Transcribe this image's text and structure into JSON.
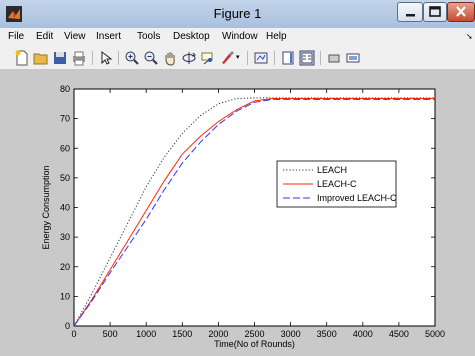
{
  "window": {
    "title": "Figure 1"
  },
  "menu": [
    {
      "label": "File"
    },
    {
      "label": "Edit"
    },
    {
      "label": "View"
    },
    {
      "label": "Insert"
    },
    {
      "label": "Tools"
    },
    {
      "label": "Desktop"
    },
    {
      "label": "Window"
    },
    {
      "label": "Help"
    }
  ],
  "toolbar": [
    "new-figure-icon",
    "open-file-icon",
    "save-icon",
    "print-icon",
    "pointer-icon",
    "zoom-in-icon",
    "zoom-out-icon",
    "pan-icon",
    "rotate-3d-icon",
    "data-cursor-icon",
    "brush-icon",
    "link-plot-icon",
    "colorbar-icon",
    "legend-icon",
    "hide-plot-tools-icon",
    "show-plot-tools-icon"
  ],
  "chart_data": {
    "type": "line",
    "title": "",
    "xlabel": "Time(No of Rounds)",
    "ylabel": "Energy Consumption",
    "xlim": [
      0,
      5000
    ],
    "ylim": [
      0,
      80
    ],
    "xticks": [
      0,
      500,
      1000,
      1500,
      2000,
      2500,
      3000,
      3500,
      4000,
      4500,
      5000
    ],
    "yticks": [
      0,
      10,
      20,
      30,
      40,
      50,
      60,
      70,
      80
    ],
    "grid": false,
    "legend_position": "center-right",
    "series": [
      {
        "name": "LEACH",
        "color": "#333333",
        "style": "dotted",
        "x": [
          0,
          250,
          500,
          750,
          1000,
          1250,
          1500,
          1750,
          2000,
          2250,
          2500,
          2750,
          3000,
          3500,
          4000,
          4500,
          5000
        ],
        "y": [
          0,
          11,
          23,
          35,
          47,
          57,
          65,
          71,
          75,
          76.8,
          77,
          77,
          77,
          77,
          77,
          77,
          77
        ]
      },
      {
        "name": "LEACH-C",
        "color": "#ff2a00",
        "style": "solid",
        "x": [
          0,
          250,
          500,
          750,
          1000,
          1250,
          1500,
          1750,
          2000,
          2250,
          2500,
          2750,
          3000,
          3500,
          4000,
          4500,
          5000
        ],
        "y": [
          0,
          9,
          19,
          29,
          39,
          49,
          58,
          64,
          69,
          73,
          76,
          76.8,
          76.8,
          76.8,
          76.8,
          76.8,
          76.8
        ]
      },
      {
        "name": "Improved LEACH-C",
        "color": "#3333ff",
        "style": "dashed",
        "x": [
          0,
          250,
          500,
          750,
          1000,
          1250,
          1500,
          1750,
          2000,
          2250,
          2500,
          2750,
          3000,
          3500,
          4000,
          4500,
          5000
        ],
        "y": [
          0,
          8.5,
          18,
          27,
          36,
          46,
          55,
          62,
          68,
          72.5,
          75.5,
          76.5,
          76.5,
          76.5,
          76.5,
          76.5,
          76.5
        ]
      }
    ]
  }
}
